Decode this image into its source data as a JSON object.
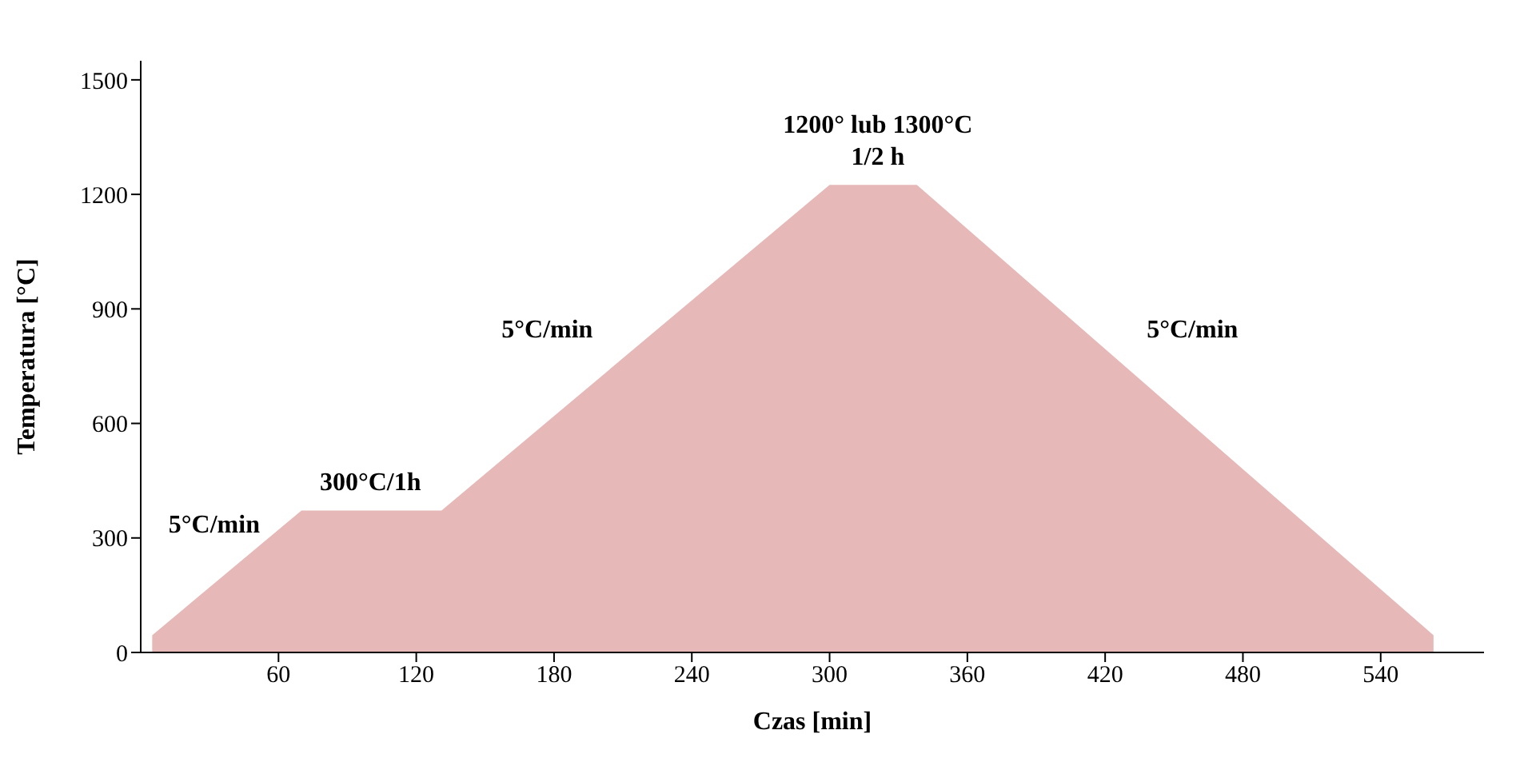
{
  "chart_data": {
    "type": "area",
    "xlabel": "Czas [min]",
    "ylabel": "Temperatura  [°C]",
    "x": [
      5,
      70,
      131,
      300,
      338,
      563
    ],
    "series": [
      {
        "color": "#e6b8b7",
        "values": [
          45,
          372,
          372,
          1225,
          1225,
          45
        ]
      }
    ],
    "xlim": [
      0,
      585
    ],
    "xticks": [
      60,
      120,
      180,
      240,
      300,
      360,
      420,
      480,
      540
    ],
    "ylim": [
      0,
      1550
    ],
    "yticks": [
      0,
      300,
      600,
      900,
      1200,
      1500
    ],
    "grid": false,
    "legend": false,
    "annotations": [
      "5°C/min",
      "300°C/1h",
      "5°C/min",
      "1200° lub 1300°C",
      "1/2 h",
      "5°C/min"
    ]
  }
}
